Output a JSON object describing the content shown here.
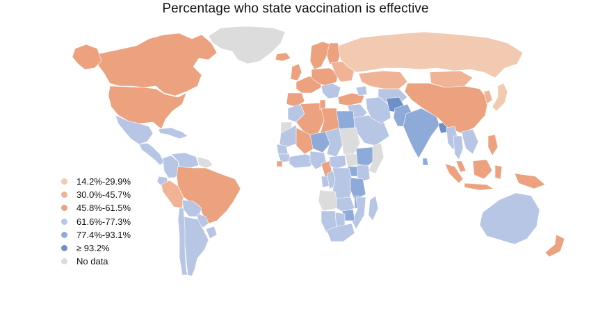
{
  "title": "Percentage who state vaccination is effective",
  "legend": [
    {
      "label": "14.2%-29.9%",
      "color": "#f2c9b1"
    },
    {
      "label": "30.0%-45.7%",
      "color": "#f0b395"
    },
    {
      "label": "45.8%-61.5%",
      "color": "#eca17f"
    },
    {
      "label": "61.6%-77.3%",
      "color": "#b8c6e6"
    },
    {
      "label": "77.4%-93.1%",
      "color": "#8eaad9"
    },
    {
      "label": "≥ 93.2%",
      "color": "#6f8fc8"
    },
    {
      "label": "No data",
      "color": "#dcdcdc"
    }
  ],
  "regions": [
    {
      "name": "Greenland",
      "bin": 6
    },
    {
      "name": "Canada",
      "bin": 2
    },
    {
      "name": "United States",
      "bin": 2
    },
    {
      "name": "Alaska",
      "bin": 2
    },
    {
      "name": "Mexico",
      "bin": 3
    },
    {
      "name": "Central America",
      "bin": 3
    },
    {
      "name": "Caribbean",
      "bin": 3
    },
    {
      "name": "Colombia",
      "bin": 3
    },
    {
      "name": "Venezuela",
      "bin": 3
    },
    {
      "name": "Guianas",
      "bin": 6
    },
    {
      "name": "Ecuador",
      "bin": 3
    },
    {
      "name": "Peru",
      "bin": 1
    },
    {
      "name": "Brazil",
      "bin": 2
    },
    {
      "name": "Bolivia",
      "bin": 3
    },
    {
      "name": "Paraguay",
      "bin": 3
    },
    {
      "name": "Uruguay",
      "bin": 3
    },
    {
      "name": "Argentina",
      "bin": 3
    },
    {
      "name": "Chile",
      "bin": 3
    },
    {
      "name": "Iceland",
      "bin": 2
    },
    {
      "name": "Scandinavia",
      "bin": 2
    },
    {
      "name": "Finland",
      "bin": 2
    },
    {
      "name": "United Kingdom",
      "bin": 2
    },
    {
      "name": "Western Europe",
      "bin": 2
    },
    {
      "name": "Iberia",
      "bin": 2
    },
    {
      "name": "Central Europe",
      "bin": 2
    },
    {
      "name": "Eastern Europe",
      "bin": 1
    },
    {
      "name": "Balkans",
      "bin": 3
    },
    {
      "name": "Russia",
      "bin": 0
    },
    {
      "name": "Kazakhstan",
      "bin": 1
    },
    {
      "name": "Central Asia",
      "bin": 3
    },
    {
      "name": "Turkey",
      "bin": 2
    },
    {
      "name": "Caucasus",
      "bin": 3
    },
    {
      "name": "Middle East",
      "bin": 3
    },
    {
      "name": "Arabian Peninsula",
      "bin": 3
    },
    {
      "name": "Iran",
      "bin": 3
    },
    {
      "name": "Afghanistan",
      "bin": 5
    },
    {
      "name": "Pakistan",
      "bin": 4
    },
    {
      "name": "India",
      "bin": 4
    },
    {
      "name": "Bangladesh",
      "bin": 5
    },
    {
      "name": "Sri Lanka",
      "bin": 4
    },
    {
      "name": "Mongolia",
      "bin": 1
    },
    {
      "name": "China",
      "bin": 2
    },
    {
      "name": "Korea",
      "bin": 1
    },
    {
      "name": "Japan",
      "bin": 0
    },
    {
      "name": "Myanmar",
      "bin": 3
    },
    {
      "name": "Thailand",
      "bin": 3
    },
    {
      "name": "Indochina",
      "bin": 3
    },
    {
      "name": "Philippines",
      "bin": 2
    },
    {
      "name": "Malaysia",
      "bin": 2
    },
    {
      "name": "Sumatra",
      "bin": 2
    },
    {
      "name": "Borneo",
      "bin": 2
    },
    {
      "name": "Java",
      "bin": 2
    },
    {
      "name": "Sulawesi",
      "bin": 2
    },
    {
      "name": "New Guinea",
      "bin": 2
    },
    {
      "name": "Australia",
      "bin": 3
    },
    {
      "name": "New Zealand",
      "bin": 2
    },
    {
      "name": "Morocco",
      "bin": 3
    },
    {
      "name": "Western Sahara",
      "bin": 6
    },
    {
      "name": "Algeria",
      "bin": 2
    },
    {
      "name": "Tunisia",
      "bin": 2
    },
    {
      "name": "Libya",
      "bin": 2
    },
    {
      "name": "Egypt",
      "bin": 4
    },
    {
      "name": "Mauritania",
      "bin": 3
    },
    {
      "name": "Mali",
      "bin": 2
    },
    {
      "name": "Niger",
      "bin": 4
    },
    {
      "name": "Chad",
      "bin": 3
    },
    {
      "name": "Sudan",
      "bin": 6
    },
    {
      "name": "Senegal",
      "bin": 3
    },
    {
      "name": "Guinea",
      "bin": 3
    },
    {
      "name": "West Africa Coast",
      "bin": 3
    },
    {
      "name": "Sierra Leone",
      "bin": 2
    },
    {
      "name": "Nigeria",
      "bin": 3
    },
    {
      "name": "Cameroon",
      "bin": 2
    },
    {
      "name": "CAR",
      "bin": 3
    },
    {
      "name": "South Sudan",
      "bin": 6
    },
    {
      "name": "Ethiopia",
      "bin": 4
    },
    {
      "name": "Somalia",
      "bin": 6
    },
    {
      "name": "Kenya",
      "bin": 3
    },
    {
      "name": "Uganda",
      "bin": 4
    },
    {
      "name": "Gabon",
      "bin": 3
    },
    {
      "name": "Congo",
      "bin": 3
    },
    {
      "name": "DR Congo",
      "bin": 3
    },
    {
      "name": "Tanzania",
      "bin": 4
    },
    {
      "name": "Angola",
      "bin": 6
    },
    {
      "name": "Zambia",
      "bin": 3
    },
    {
      "name": "Malawi",
      "bin": 4
    },
    {
      "name": "Mozambique",
      "bin": 3
    },
    {
      "name": "Zimbabwe",
      "bin": 4
    },
    {
      "name": "Namibia",
      "bin": 3
    },
    {
      "name": "Botswana",
      "bin": 3
    },
    {
      "name": "South Africa",
      "bin": 3
    },
    {
      "name": "Madagascar",
      "bin": 3
    }
  ]
}
